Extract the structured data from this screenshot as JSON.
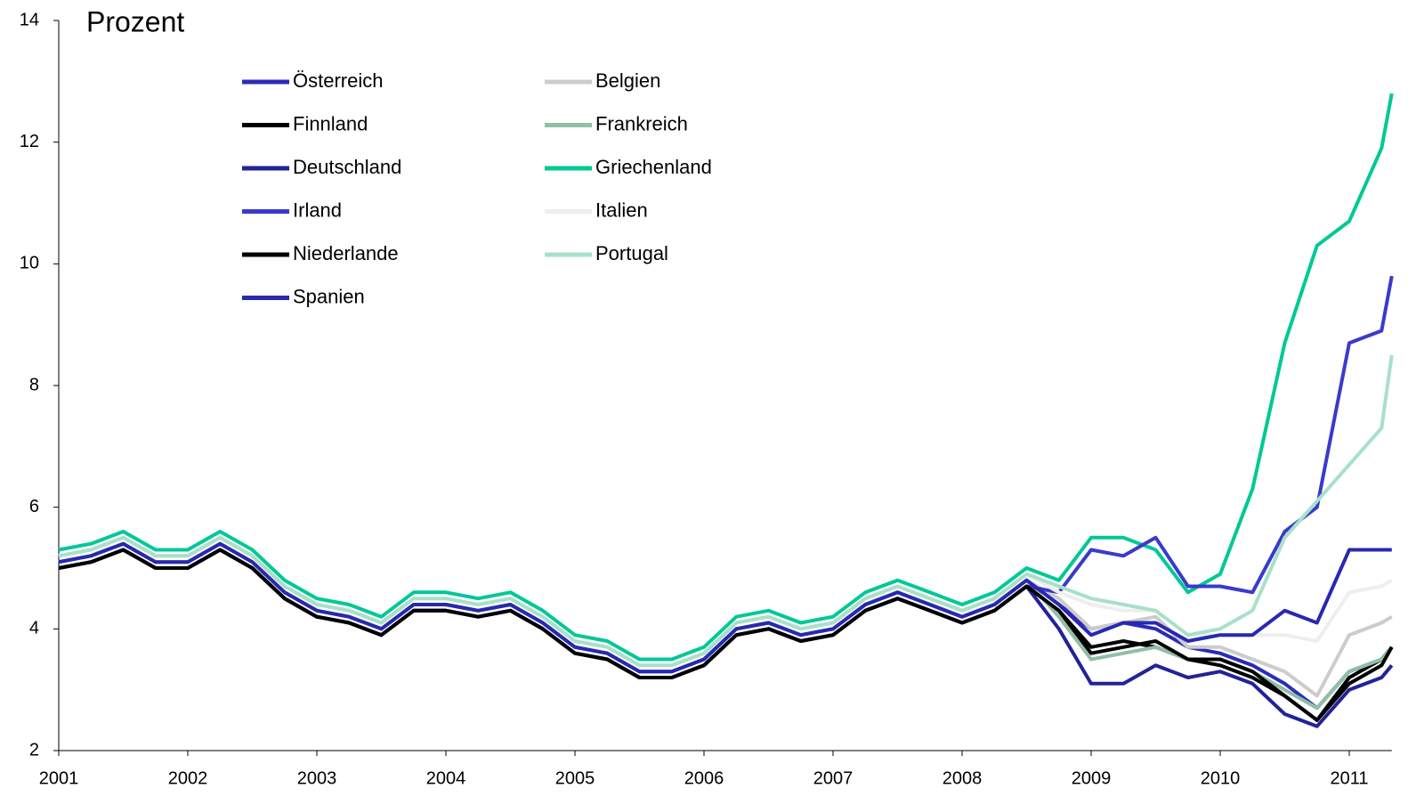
{
  "chart_data": {
    "type": "line",
    "y_axis_label": "Prozent",
    "x": [
      2001,
      2001.25,
      2001.5,
      2001.75,
      2002,
      2002.25,
      2002.5,
      2002.75,
      2003,
      2003.25,
      2003.5,
      2003.75,
      2004,
      2004.25,
      2004.5,
      2004.75,
      2005,
      2005.25,
      2005.5,
      2005.75,
      2006,
      2006.25,
      2006.5,
      2006.75,
      2007,
      2007.25,
      2007.5,
      2007.75,
      2008,
      2008.25,
      2008.5,
      2008.75,
      2009,
      2009.25,
      2009.5,
      2009.75,
      2010,
      2010.25,
      2010.5,
      2010.75,
      2011,
      2011.25,
      2011.33
    ],
    "xlim": [
      2001,
      2011.33
    ],
    "xticks": [
      2001,
      2002,
      2003,
      2004,
      2005,
      2006,
      2007,
      2008,
      2009,
      2010,
      2011
    ],
    "ylim": [
      2,
      14
    ],
    "yticks": [
      2,
      4,
      6,
      8,
      10,
      12,
      14
    ],
    "series": [
      {
        "name": "Österreich",
        "color": "#2b2bb8",
        "values": [
          5.1,
          5.2,
          5.4,
          5.1,
          5.1,
          5.4,
          5.1,
          4.6,
          4.3,
          4.2,
          4.0,
          4.4,
          4.4,
          4.3,
          4.4,
          4.1,
          3.7,
          3.6,
          3.3,
          3.3,
          3.5,
          4.0,
          4.1,
          3.9,
          4.0,
          4.4,
          4.6,
          4.4,
          4.2,
          4.4,
          4.8,
          4.4,
          4.0,
          4.1,
          4.0,
          3.7,
          3.6,
          3.4,
          3.1,
          2.7,
          3.3,
          3.5,
          3.7
        ]
      },
      {
        "name": "Belgien",
        "color": "#cccccc",
        "values": [
          5.1,
          5.2,
          5.4,
          5.1,
          5.1,
          5.4,
          5.1,
          4.6,
          4.3,
          4.2,
          4.0,
          4.4,
          4.4,
          4.3,
          4.4,
          4.1,
          3.7,
          3.6,
          3.3,
          3.3,
          3.5,
          4.0,
          4.1,
          3.9,
          4.0,
          4.4,
          4.6,
          4.4,
          4.2,
          4.4,
          4.8,
          4.5,
          4.0,
          4.1,
          4.2,
          3.7,
          3.7,
          3.5,
          3.3,
          2.9,
          3.9,
          4.1,
          4.2
        ]
      },
      {
        "name": "Finnland",
        "color": "#000000",
        "values": [
          5.0,
          5.1,
          5.3,
          5.0,
          5.0,
          5.3,
          5.0,
          4.5,
          4.2,
          4.1,
          3.9,
          4.3,
          4.3,
          4.2,
          4.3,
          4.0,
          3.6,
          3.5,
          3.2,
          3.2,
          3.4,
          3.9,
          4.0,
          3.8,
          3.9,
          4.3,
          4.5,
          4.3,
          4.1,
          4.3,
          4.7,
          4.3,
          3.7,
          3.8,
          3.7,
          3.5,
          3.4,
          3.2,
          2.9,
          2.5,
          3.2,
          3.5,
          3.7
        ]
      },
      {
        "name": "Frankreich",
        "color": "#8fbfa6",
        "values": [
          5.1,
          5.2,
          5.4,
          5.1,
          5.1,
          5.4,
          5.1,
          4.6,
          4.3,
          4.2,
          4.0,
          4.4,
          4.4,
          4.3,
          4.4,
          4.1,
          3.7,
          3.6,
          3.3,
          3.3,
          3.5,
          4.0,
          4.1,
          3.9,
          4.0,
          4.4,
          4.6,
          4.4,
          4.2,
          4.4,
          4.8,
          4.2,
          3.5,
          3.6,
          3.7,
          3.5,
          3.5,
          3.3,
          3.0,
          2.7,
          3.3,
          3.5,
          3.7
        ]
      },
      {
        "name": "Deutschland",
        "color": "#222299",
        "values": [
          5.0,
          5.1,
          5.3,
          5.0,
          5.0,
          5.3,
          5.0,
          4.5,
          4.2,
          4.1,
          3.9,
          4.3,
          4.3,
          4.2,
          4.3,
          4.0,
          3.6,
          3.5,
          3.2,
          3.2,
          3.4,
          3.9,
          4.0,
          3.8,
          3.9,
          4.3,
          4.5,
          4.3,
          4.1,
          4.3,
          4.7,
          4.0,
          3.1,
          3.1,
          3.4,
          3.2,
          3.3,
          3.1,
          2.6,
          2.4,
          3.0,
          3.2,
          3.4
        ]
      },
      {
        "name": "Griechenland",
        "color": "#00c896",
        "values": [
          5.3,
          5.4,
          5.6,
          5.3,
          5.3,
          5.6,
          5.3,
          4.8,
          4.5,
          4.4,
          4.2,
          4.6,
          4.6,
          4.5,
          4.6,
          4.3,
          3.9,
          3.8,
          3.5,
          3.5,
          3.7,
          4.2,
          4.3,
          4.1,
          4.2,
          4.6,
          4.8,
          4.6,
          4.4,
          4.6,
          5.0,
          4.8,
          5.5,
          5.5,
          5.3,
          4.6,
          4.9,
          6.3,
          8.7,
          10.3,
          10.7,
          11.9,
          12.8
        ]
      },
      {
        "name": "Irland",
        "color": "#3a3acc",
        "values": [
          5.0,
          5.1,
          5.3,
          5.0,
          5.0,
          5.3,
          5.0,
          4.5,
          4.2,
          4.1,
          3.9,
          4.3,
          4.3,
          4.2,
          4.3,
          4.0,
          3.6,
          3.5,
          3.2,
          3.2,
          3.4,
          3.9,
          4.0,
          3.8,
          3.9,
          4.3,
          4.5,
          4.3,
          4.1,
          4.3,
          4.7,
          4.6,
          5.3,
          5.2,
          5.5,
          4.7,
          4.7,
          4.6,
          5.6,
          6.0,
          8.7,
          8.9,
          9.8
        ]
      },
      {
        "name": "Italien",
        "color": "#eeeeee",
        "values": [
          5.2,
          5.3,
          5.5,
          5.2,
          5.2,
          5.5,
          5.2,
          4.7,
          4.4,
          4.3,
          4.1,
          4.5,
          4.5,
          4.4,
          4.5,
          4.2,
          3.8,
          3.7,
          3.4,
          3.4,
          3.6,
          4.1,
          4.2,
          4.0,
          4.1,
          4.5,
          4.7,
          4.5,
          4.3,
          4.5,
          4.9,
          4.6,
          4.4,
          4.3,
          4.3,
          3.9,
          3.9,
          3.9,
          3.9,
          3.8,
          4.6,
          4.7,
          4.8
        ]
      },
      {
        "name": "Niederlande",
        "color": "#000000",
        "values": [
          5.0,
          5.1,
          5.3,
          5.0,
          5.0,
          5.3,
          5.0,
          4.5,
          4.2,
          4.1,
          3.9,
          4.3,
          4.3,
          4.2,
          4.3,
          4.0,
          3.6,
          3.5,
          3.2,
          3.2,
          3.4,
          3.9,
          4.0,
          3.8,
          3.9,
          4.3,
          4.5,
          4.3,
          4.1,
          4.3,
          4.7,
          4.3,
          3.6,
          3.7,
          3.8,
          3.5,
          3.5,
          3.3,
          2.9,
          2.5,
          3.1,
          3.4,
          3.7
        ]
      },
      {
        "name": "Portugal",
        "color": "#a8e0c8",
        "values": [
          5.2,
          5.3,
          5.5,
          5.2,
          5.2,
          5.5,
          5.2,
          4.7,
          4.4,
          4.3,
          4.1,
          4.5,
          4.5,
          4.4,
          4.5,
          4.2,
          3.8,
          3.7,
          3.4,
          3.4,
          3.6,
          4.1,
          4.2,
          4.0,
          4.1,
          4.5,
          4.7,
          4.5,
          4.3,
          4.5,
          4.9,
          4.7,
          4.5,
          4.4,
          4.3,
          3.9,
          4.0,
          4.3,
          5.5,
          6.1,
          6.7,
          7.3,
          8.5
        ]
      },
      {
        "name": "Spanien",
        "color": "#2828b0",
        "values": [
          5.1,
          5.2,
          5.4,
          5.1,
          5.1,
          5.4,
          5.1,
          4.6,
          4.3,
          4.2,
          4.0,
          4.4,
          4.4,
          4.3,
          4.4,
          4.1,
          3.7,
          3.6,
          3.3,
          3.3,
          3.5,
          4.0,
          4.1,
          3.9,
          4.0,
          4.4,
          4.6,
          4.4,
          4.2,
          4.4,
          4.8,
          4.4,
          3.9,
          4.1,
          4.1,
          3.8,
          3.9,
          3.9,
          4.3,
          4.1,
          5.3,
          5.3,
          5.3
        ]
      }
    ]
  }
}
